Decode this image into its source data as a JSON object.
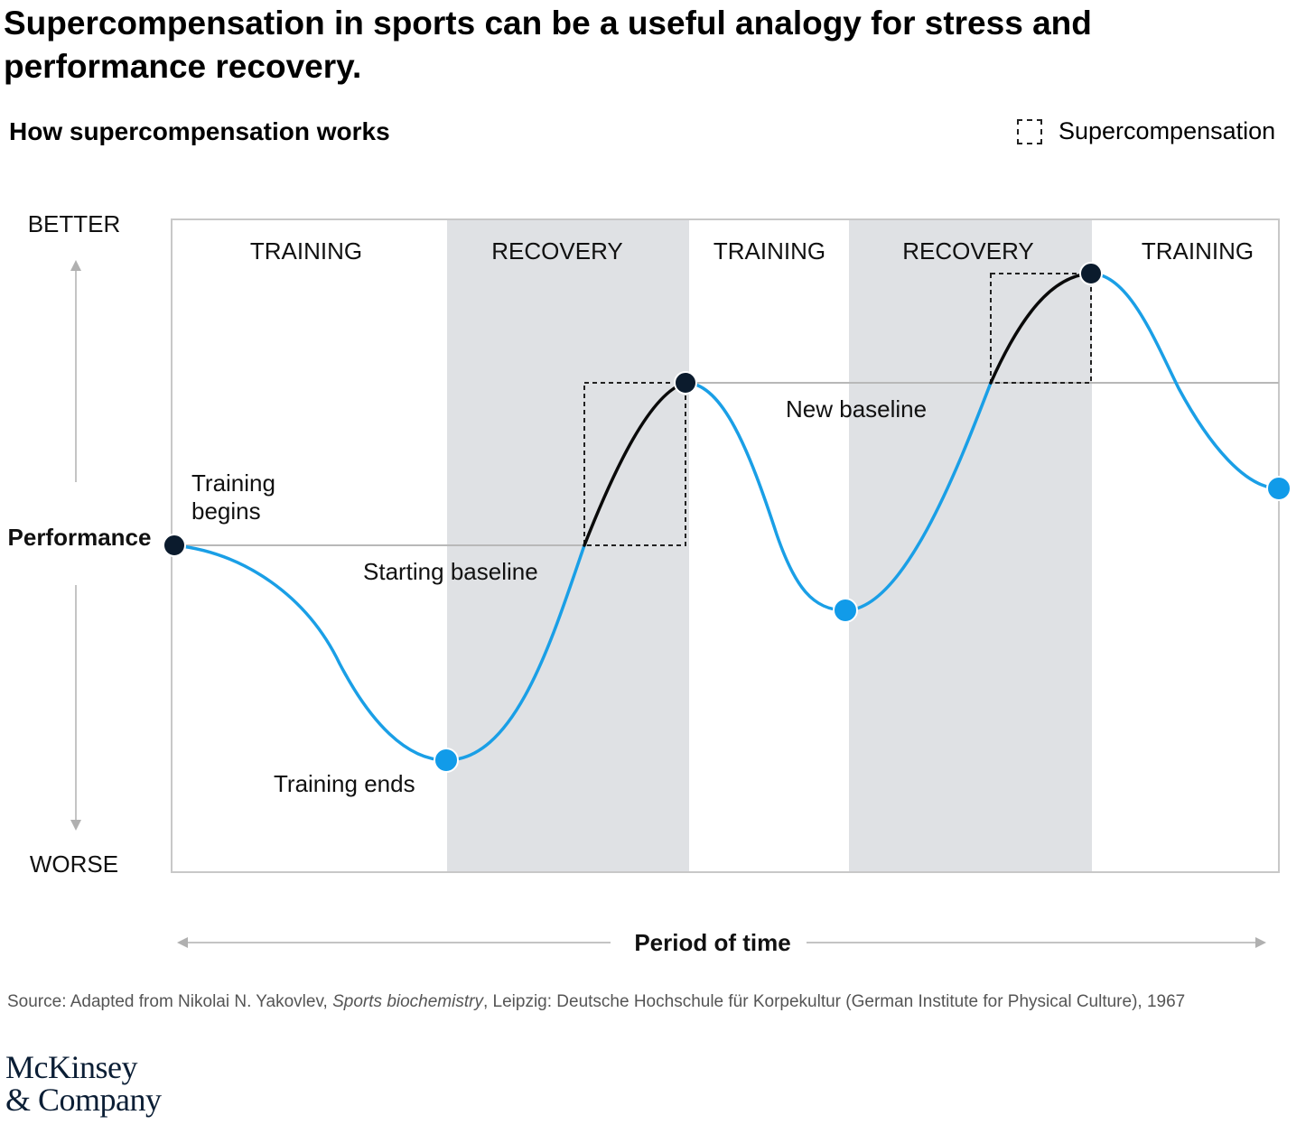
{
  "title": "Supercompensation in sports can be a useful analogy for stress and performance recovery.",
  "subtitle": "How supercompensation works",
  "legend": {
    "label": "Supercompensation"
  },
  "y_axis": {
    "top_label": "BETTER",
    "middle_label": "Performance",
    "bottom_label": "WORSE"
  },
  "x_axis": {
    "label": "Period of time"
  },
  "phases": [
    "TRAINING",
    "RECOVERY",
    "TRAINING",
    "RECOVERY",
    "TRAINING"
  ],
  "annotations": {
    "training_begins": [
      "Training",
      "begins"
    ],
    "starting_baseline": "Starting baseline",
    "training_ends": "Training ends",
    "new_baseline": "New baseline"
  },
  "source": {
    "prefix": "Source: Adapted from Nikolai N. Yakovlev, ",
    "italic": "Sports biochemistry",
    "suffix": ", Leipzig: Deutsche Hochschule für Korpekultur (German Institute for Physical Culture), 1967"
  },
  "logo": {
    "line1": "McKinsey",
    "line2": "& Company"
  },
  "colors": {
    "curve": "#1a9fe6",
    "supercompensation_curve": "#0a0a0a",
    "dark_point": "#0b1b2d",
    "light_point": "#119be9",
    "recovery_band": "#dfe1e4",
    "baseline": "#b8b8b8",
    "frame": "#c8c8c8",
    "arrow": "#b0b0b0"
  }
}
